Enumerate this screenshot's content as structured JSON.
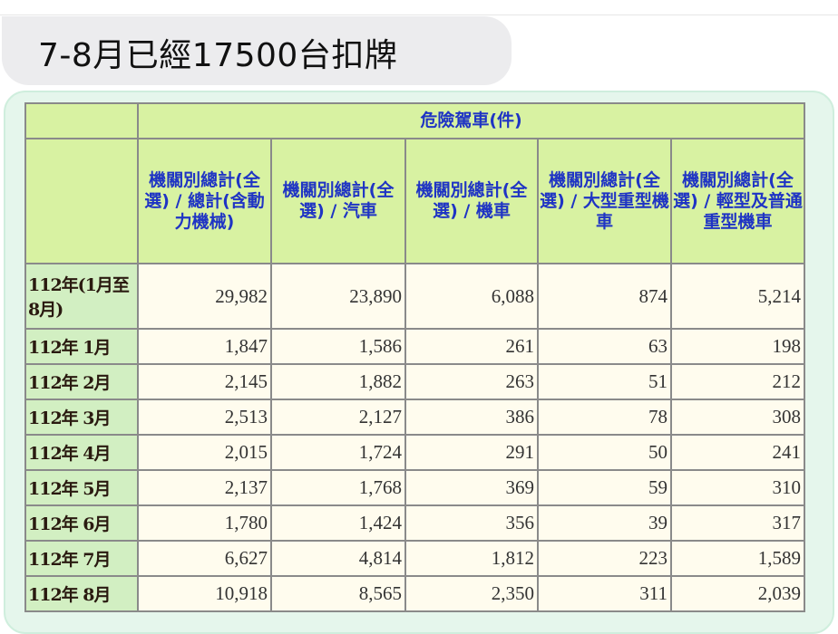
{
  "post": {
    "text": "7-8月已經17500台扣牌"
  },
  "table": {
    "group_header": "危險駕車(件)",
    "columns": [
      "機關別總計(全選) / 總計(含動力機械)",
      "機關別總計(全選) / 汽車",
      "機關別總計(全選) / 機車",
      "機關別總計(全選) / 大型重型機車",
      "機關別總計(全選) / 輕型及普通重型機車"
    ],
    "rows": [
      {
        "label": "112年(1月至8月)",
        "values": [
          "29,982",
          "23,890",
          "6,088",
          "874",
          "5,214"
        ]
      },
      {
        "label": "112年 1月",
        "values": [
          "1,847",
          "1,586",
          "261",
          "63",
          "198"
        ]
      },
      {
        "label": "112年 2月",
        "values": [
          "2,145",
          "1,882",
          "263",
          "51",
          "212"
        ]
      },
      {
        "label": "112年 3月",
        "values": [
          "2,513",
          "2,127",
          "386",
          "78",
          "308"
        ]
      },
      {
        "label": "112年 4月",
        "values": [
          "2,015",
          "1,724",
          "291",
          "50",
          "241"
        ]
      },
      {
        "label": "112年 5月",
        "values": [
          "2,137",
          "1,768",
          "369",
          "59",
          "310"
        ]
      },
      {
        "label": "112年 6月",
        "values": [
          "1,780",
          "1,424",
          "356",
          "39",
          "317"
        ]
      },
      {
        "label": "112年 7月",
        "values": [
          "6,627",
          "4,814",
          "1,812",
          "223",
          "1,589"
        ]
      },
      {
        "label": "112年 8月",
        "values": [
          "10,918",
          "8,565",
          "2,350",
          "311",
          "2,039"
        ]
      }
    ]
  },
  "colors": {
    "header_bg": "#d8f2a2",
    "header_text": "#1f34c4",
    "label_bg": "#d2efc2",
    "cell_bg": "#fffcee"
  }
}
